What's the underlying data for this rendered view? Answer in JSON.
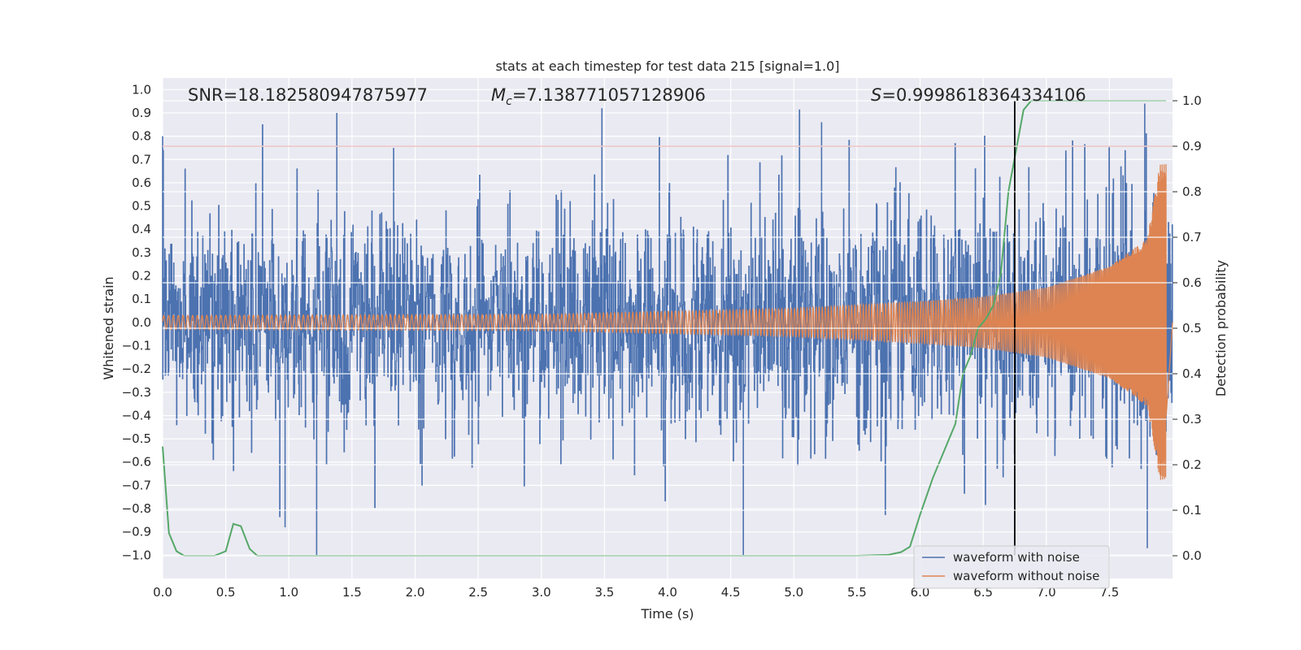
{
  "chart_data": {
    "type": "line",
    "title": "stats at each timestep for test data 215 [signal=1.0]",
    "xlabel": "Time (s)",
    "ylabel_left": "Whitened strain",
    "ylabel_right": "Detection probability",
    "xlim": [
      0.0,
      8.0
    ],
    "ylim_left": [
      -1.1,
      1.05
    ],
    "ylim_right": [
      -0.05,
      1.05
    ],
    "x_ticks": [
      "0.0",
      "0.5",
      "1.0",
      "1.5",
      "2.0",
      "2.5",
      "3.0",
      "3.5",
      "4.0",
      "4.5",
      "5.0",
      "5.5",
      "6.0",
      "6.5",
      "7.0",
      "7.5"
    ],
    "y_ticks_left": [
      "1.0",
      "0.9",
      "0.8",
      "0.7",
      "0.6",
      "0.5",
      "0.4",
      "0.3",
      "0.2",
      "0.1",
      "0.0",
      "-0.1",
      "-0.2",
      "-0.3",
      "-0.4",
      "-0.5",
      "-0.6",
      "-0.7",
      "-0.8",
      "-0.9",
      "-1.0"
    ],
    "y_ticks_right": [
      "1.0",
      "0.9",
      "0.8",
      "0.7",
      "0.6",
      "0.5",
      "0.4",
      "0.3",
      "0.2",
      "0.1",
      "0.0"
    ],
    "grid": true,
    "legend_position": "bottom-right",
    "annotations": {
      "snr": "SNR=18.182580947875977",
      "mc_symbol": "M",
      "mc_sub": "c",
      "mc_value": "=7.138771057128906",
      "s_symbol": "S",
      "s_value": "=0.9998618364334106"
    },
    "threshold_line": {
      "y_right": 0.9,
      "color": "#c44e52"
    },
    "vertical_line": {
      "x": 6.75,
      "color": "#000000"
    },
    "series": [
      {
        "name": "waveform with noise",
        "axis": "left",
        "color": "#4c72b0",
        "kind": "noisy-strain",
        "x_range": [
          0.0,
          8.0
        ],
        "envelope": [
          [
            0.0,
            0.55
          ],
          [
            1.0,
            0.55
          ],
          [
            2.0,
            0.55
          ],
          [
            3.0,
            0.55
          ],
          [
            4.0,
            0.56
          ],
          [
            5.0,
            0.57
          ],
          [
            5.5,
            0.58
          ],
          [
            6.0,
            0.6
          ],
          [
            6.5,
            0.62
          ],
          [
            7.0,
            0.64
          ],
          [
            7.5,
            0.7
          ],
          [
            8.0,
            0.8
          ]
        ],
        "peaks": [
          [
            0.0,
            0.8
          ],
          [
            1.38,
            0.9
          ],
          [
            1.83,
            0.75
          ],
          [
            3.48,
            0.92
          ],
          [
            5.22,
            0.86
          ],
          [
            7.78,
            0.94
          ],
          [
            1.22,
            -1.0
          ],
          [
            4.6,
            -1.0
          ],
          [
            7.8,
            -0.97
          ],
          [
            0.97,
            -0.88
          ]
        ]
      },
      {
        "name": "waveform without noise",
        "axis": "left",
        "color": "#dd8452",
        "kind": "chirp",
        "x_range": [
          0.0,
          7.95
        ],
        "amplitude": [
          [
            0.0,
            0.03
          ],
          [
            3.0,
            0.035
          ],
          [
            5.0,
            0.06
          ],
          [
            6.0,
            0.09
          ],
          [
            6.5,
            0.11
          ],
          [
            7.0,
            0.15
          ],
          [
            7.5,
            0.24
          ],
          [
            7.8,
            0.36
          ],
          [
            7.9,
            0.68
          ]
        ],
        "frequency_hz": [
          [
            0.0,
            26
          ],
          [
            3.0,
            32
          ],
          [
            5.0,
            40
          ],
          [
            6.0,
            48
          ],
          [
            7.0,
            70
          ],
          [
            7.5,
            100
          ],
          [
            7.9,
            200
          ]
        ]
      },
      {
        "name": "detection probability",
        "axis": "right",
        "color": "#55a868",
        "kind": "probability",
        "x": [
          0.0,
          0.05,
          0.11,
          0.17,
          0.25,
          0.33,
          0.41,
          0.5,
          0.56,
          0.62,
          0.69,
          0.75,
          0.85,
          1.0,
          2.0,
          3.0,
          4.0,
          5.0,
          5.5,
          5.75,
          5.85,
          5.92,
          6.0,
          6.1,
          6.16,
          6.22,
          6.28,
          6.34,
          6.4,
          6.46,
          6.52,
          6.58,
          6.64,
          6.7,
          6.76,
          6.82,
          6.88,
          6.95,
          7.1,
          7.5,
          7.95
        ],
        "y": [
          0.24,
          0.05,
          0.01,
          0.0,
          0.0,
          0.0,
          0.0,
          0.01,
          0.07,
          0.065,
          0.015,
          0.0,
          0.0,
          0.0,
          0.0,
          0.0,
          0.0,
          0.0,
          0.0,
          0.002,
          0.008,
          0.02,
          0.09,
          0.17,
          0.21,
          0.25,
          0.29,
          0.4,
          0.44,
          0.5,
          0.52,
          0.55,
          0.62,
          0.8,
          0.89,
          0.98,
          1.0,
          1.0,
          1.0,
          1.0,
          1.0
        ]
      }
    ]
  }
}
